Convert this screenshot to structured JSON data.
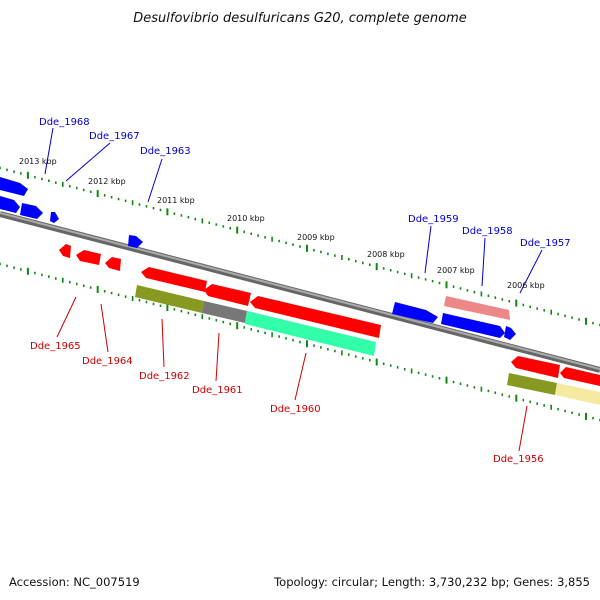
{
  "title": "Desulfovibrio desulfuricans G20, complete genome",
  "footer": {
    "accession": "Accession: NC_007519",
    "summary": "Topology: circular; Length: 3,730,232 bp; Genes: 3,855"
  },
  "colors": {
    "forward_strand": "#0000ff",
    "reverse_strand": "#ff0000",
    "forward_label": "#0000cc",
    "reverse_label": "#cc0000",
    "backbone": "#888888",
    "tick": "#118811",
    "olive": "#889922",
    "gray_feature": "#777777",
    "teal_feature": "#33ffaa",
    "pink_feature": "#ee8888",
    "yellow_feature": "#f5eaa0"
  },
  "ruler_labels": [
    "2013 kbp",
    "2012 kbp",
    "2011 kbp",
    "2010 kbp",
    "2009 kbp",
    "2008 kbp",
    "2007 kbp",
    "2006 kbp"
  ],
  "forward_genes": [
    "Dde_1968",
    "Dde_1967",
    "Dde_1963",
    "Dde_1959",
    "Dde_1958",
    "Dde_1957"
  ],
  "reverse_genes": [
    "Dde_1965",
    "Dde_1964",
    "Dde_1962",
    "Dde_1961",
    "Dde_1960",
    "Dde_1956"
  ]
}
